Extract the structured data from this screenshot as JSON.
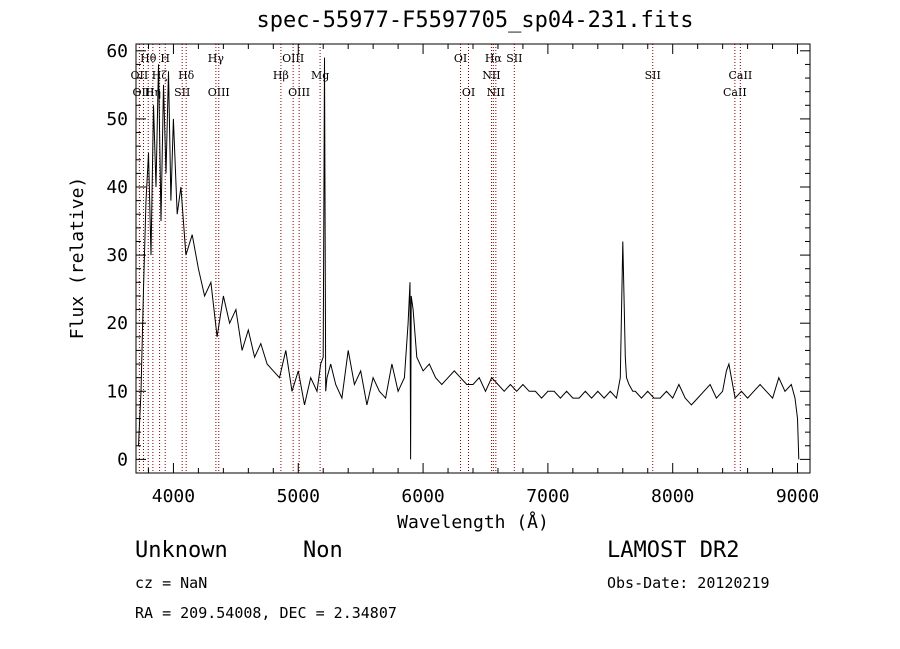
{
  "title": "spec-55977-F5597705_sp04-231.fits",
  "info": {
    "class": "Unknown",
    "subclass": "Non",
    "survey": "LAMOST DR2",
    "obs_date": "Obs-Date: 20120219",
    "cz": "cz = NaN",
    "radec": "RA = 209.54008, DEC =   2.34807"
  },
  "chart_data": {
    "type": "line",
    "title": "spec-55977-F5597705_sp04-231.fits",
    "xlabel": "Wavelength (Å)",
    "ylabel": "Flux (relative)",
    "xlim": [
      3700,
      9100
    ],
    "ylim": [
      -2,
      61
    ],
    "xticks": [
      4000,
      5000,
      6000,
      7000,
      8000,
      9000
    ],
    "yticks": [
      0,
      10,
      20,
      30,
      40,
      50,
      60
    ],
    "line_color": "#000000",
    "marker_color": "#8b0000",
    "grid": false,
    "series": [
      {
        "x": [
          3720,
          3740,
          3760,
          3780,
          3800,
          3820,
          3840,
          3860,
          3880,
          3900,
          3920,
          3940,
          3960,
          3980,
          4000,
          4030,
          4060,
          4100,
          4150,
          4200,
          4250,
          4300,
          4350,
          4400,
          4450,
          4500,
          4550,
          4600,
          4650,
          4700,
          4750,
          4800,
          4850,
          4900,
          4950,
          5000,
          5050,
          5100,
          5150,
          5180,
          5200,
          5210,
          5220,
          5230,
          5260,
          5300,
          5350,
          5400,
          5450,
          5500,
          5550,
          5600,
          5650,
          5700,
          5750,
          5800,
          5850,
          5880,
          5895,
          5900,
          5905,
          5920,
          5950,
          6000,
          6050,
          6100,
          6150,
          6200,
          6250,
          6300,
          6350,
          6400,
          6450,
          6500,
          6550,
          6600,
          6650,
          6700,
          6750,
          6800,
          6850,
          6900,
          6950,
          7000,
          7050,
          7100,
          7150,
          7200,
          7250,
          7300,
          7350,
          7400,
          7450,
          7500,
          7550,
          7580,
          7600,
          7610,
          7620,
          7630,
          7650,
          7680,
          7700,
          7750,
          7800,
          7850,
          7900,
          7950,
          8000,
          8050,
          8100,
          8150,
          8200,
          8250,
          8300,
          8350,
          8400,
          8430,
          8450,
          8480,
          8500,
          8550,
          8600,
          8650,
          8700,
          8750,
          8800,
          8850,
          8900,
          8950,
          8980,
          9000,
          9010
        ],
        "y": [
          2,
          10,
          25,
          38,
          45,
          30,
          52,
          40,
          58,
          35,
          55,
          42,
          57,
          38,
          50,
          36,
          40,
          30,
          33,
          28,
          24,
          26,
          18,
          24,
          20,
          22,
          16,
          19,
          15,
          17,
          14,
          13,
          12,
          16,
          10,
          13,
          8,
          12,
          10,
          14,
          15,
          59,
          10,
          12,
          14,
          11,
          9,
          16,
          11,
          13,
          8,
          12,
          10,
          9,
          14,
          10,
          12,
          20,
          26,
          0,
          24,
          22,
          15,
          13,
          14,
          12,
          11,
          12,
          13,
          12,
          11,
          11,
          12,
          10,
          12,
          11,
          10,
          11,
          10,
          11,
          10,
          10,
          9,
          10,
          10,
          9,
          10,
          9,
          9,
          10,
          9,
          10,
          9,
          10,
          9,
          12,
          32,
          24,
          15,
          12,
          11,
          10,
          10,
          9,
          10,
          9,
          9,
          10,
          9,
          11,
          9,
          8,
          9,
          10,
          11,
          9,
          10,
          13,
          14,
          11,
          9,
          10,
          9,
          10,
          11,
          10,
          9,
          12,
          10,
          11,
          9,
          6,
          0
        ]
      }
    ],
    "lines": [
      {
        "label": "OII",
        "x": 3727,
        "row": 2
      },
      {
        "label": "OIII",
        "x": 3760,
        "row": 3
      },
      {
        "label": "Hθ",
        "x": 3798,
        "row": 1
      },
      {
        "label": "Hη",
        "x": 3835,
        "row": 3
      },
      {
        "label": "Hζ",
        "x": 3889,
        "row": 2
      },
      {
        "label": "H",
        "x": 3934,
        "row": 1
      },
      {
        "label": "Hδ",
        "x": 4102,
        "row": 2
      },
      {
        "label": "SII",
        "x": 4070,
        "row": 3
      },
      {
        "label": "Hγ",
        "x": 4340,
        "row": 1
      },
      {
        "label": "OIII",
        "x": 4363,
        "row": 3
      },
      {
        "label": "Hβ",
        "x": 4861,
        "row": 2
      },
      {
        "label": "OIII",
        "x": 4959,
        "row": 1
      },
      {
        "label": "OIII",
        "x": 5007,
        "row": 3
      },
      {
        "label": "Mg",
        "x": 5175,
        "row": 2
      },
      {
        "label": "OI",
        "x": 6300,
        "row": 1
      },
      {
        "label": "OI",
        "x": 6364,
        "row": 3
      },
      {
        "label": "NII",
        "x": 6548,
        "row": 2
      },
      {
        "label": "NII",
        "x": 6583,
        "row": 3
      },
      {
        "label": "Hα",
        "x": 6563,
        "row": 1
      },
      {
        "label": "SII",
        "x": 6731,
        "row": 1
      },
      {
        "label": "SII",
        "x": 7840,
        "row": 2
      },
      {
        "label": "CaII",
        "x": 8542,
        "row": 2
      },
      {
        "label": "CaII",
        "x": 8498,
        "row": 3
      }
    ]
  }
}
